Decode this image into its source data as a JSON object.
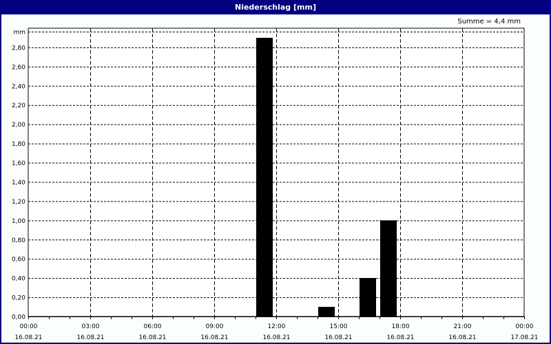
{
  "window": {
    "title": "Niederschlag [mm]"
  },
  "summary": "Summe = 4,4 mm",
  "chart_data": {
    "type": "bar",
    "title": "Niederschlag [mm]",
    "ylabel": "mm",
    "ylim": [
      0,
      3.0
    ],
    "yticks": [
      "0,00",
      "0,20",
      "0,40",
      "0,60",
      "0,80",
      "1,00",
      "1,20",
      "1,40",
      "1,60",
      "1,80",
      "2,00",
      "2,20",
      "2,40",
      "2,60",
      "2,80"
    ],
    "xlim": [
      "16.08.21 00:00",
      "17.08.21 00:00"
    ],
    "xticks": [
      {
        "time": "00:00",
        "date": "16.08.21"
      },
      {
        "time": "03:00",
        "date": "16.08.21"
      },
      {
        "time": "06:00",
        "date": "16.08.21"
      },
      {
        "time": "09:00",
        "date": "16.08.21"
      },
      {
        "time": "12:00",
        "date": "16.08.21"
      },
      {
        "time": "15:00",
        "date": "16.08.21"
      },
      {
        "time": "18:00",
        "date": "16.08.21"
      },
      {
        "time": "21:00",
        "date": "16.08.21"
      },
      {
        "time": "00:00",
        "date": "17.08.21"
      }
    ],
    "grid": true,
    "bar_color": "#000000",
    "bars": [
      {
        "start_hour": 11,
        "end_hour": 12,
        "value": 2.9
      },
      {
        "start_hour": 14,
        "end_hour": 15,
        "value": 0.1
      },
      {
        "start_hour": 16,
        "end_hour": 17,
        "value": 0.4
      },
      {
        "start_hour": 17,
        "end_hour": 18,
        "value": 1.0
      }
    ],
    "total": 4.4
  }
}
